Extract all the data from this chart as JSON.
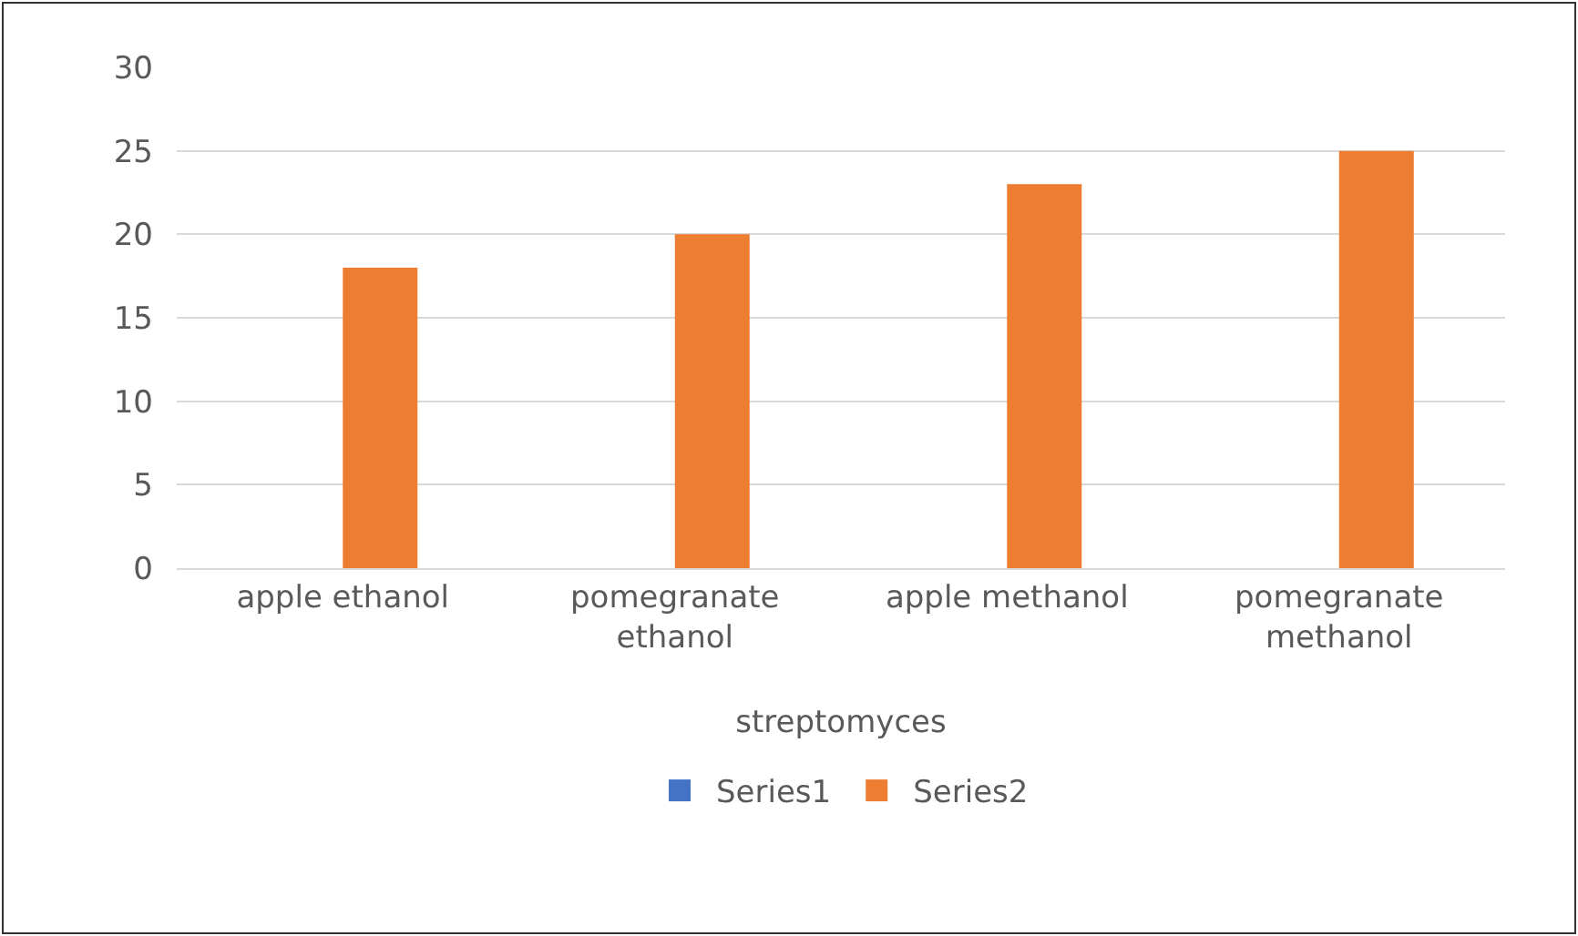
{
  "chart_data": {
    "type": "bar",
    "xlabel": "streptomyces",
    "categories": [
      "apple ethanol",
      "pomegranate ethanol",
      "apple methanol",
      "pomegranate methanol"
    ],
    "series": [
      {
        "name": "Series1",
        "color": "#4472c4",
        "values": [
          null,
          null,
          null,
          null
        ]
      },
      {
        "name": "Series2",
        "color": "#ed7d31",
        "values": [
          18,
          20,
          23,
          25
        ]
      }
    ],
    "ylim": [
      0,
      30
    ],
    "yticks": [
      0,
      5,
      10,
      15,
      20,
      25,
      30
    ],
    "grid": "y",
    "legend": "bottom"
  }
}
